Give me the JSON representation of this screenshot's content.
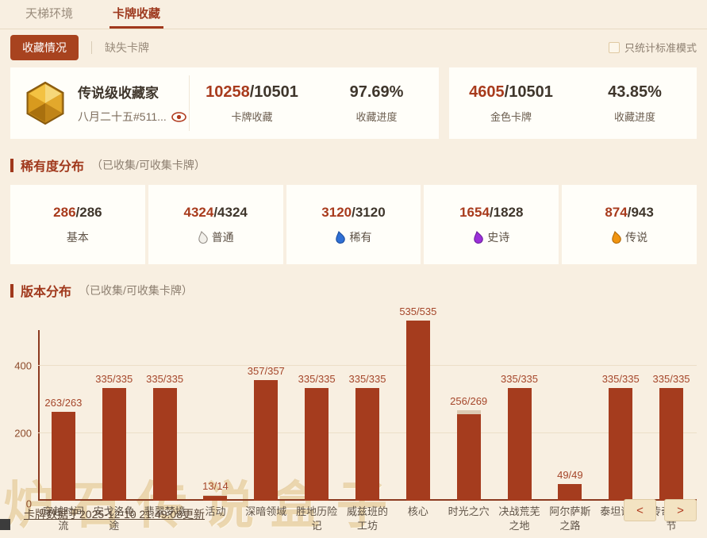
{
  "tabs": [
    {
      "label": "天梯环境",
      "active": false
    },
    {
      "label": "卡牌收藏",
      "active": true
    }
  ],
  "subnav": {
    "buttons": [
      {
        "label": "收藏情况",
        "active": true
      },
      {
        "label": "缺失卡牌",
        "active": false
      }
    ],
    "checkbox_label": "只统计标准模式",
    "checkbox_checked": false
  },
  "profile": {
    "title": "传说级收藏家",
    "battletag": "八月二十五#511...",
    "icon": "gold-hexagon-gem"
  },
  "summary": {
    "stats": [
      {
        "red": "10258",
        "dark": "/10501",
        "label": "卡牌收藏"
      },
      {
        "red": "",
        "dark": "97.69%",
        "label": "收藏进度"
      },
      {
        "red": "4605",
        "dark": "/10501",
        "label": "金色卡牌"
      },
      {
        "red": "",
        "dark": "43.85%",
        "label": "收藏进度"
      }
    ]
  },
  "rarity_section": {
    "title": "稀有度分布",
    "subtitle": "（已收集/可收集卡牌）",
    "items": [
      {
        "collected": "286",
        "total": "286",
        "label": "基本",
        "gem": null,
        "gem_fill": null,
        "gem_stroke": null
      },
      {
        "collected": "4324",
        "total": "4324",
        "label": "普通",
        "gem": "common-gem-icon",
        "gem_fill": "#f2f0ea",
        "gem_stroke": "#97918a"
      },
      {
        "collected": "3120",
        "total": "3120",
        "label": "稀有",
        "gem": "rare-gem-icon",
        "gem_fill": "#2f6fd4",
        "gem_stroke": "#1d4fa0"
      },
      {
        "collected": "1654",
        "total": "1828",
        "label": "史诗",
        "gem": "epic-gem-icon",
        "gem_fill": "#9b30d9",
        "gem_stroke": "#6d1f9e"
      },
      {
        "collected": "874",
        "total": "943",
        "label": "传说",
        "gem": "legendary-gem-icon",
        "gem_fill": "#f09410",
        "gem_stroke": "#b36a08"
      }
    ]
  },
  "version_section": {
    "title": "版本分布",
    "subtitle": "（已收集/可收集卡牌）"
  },
  "chart_data": {
    "type": "bar",
    "categories": [
      "穿越时间流",
      "安戈洛龟途",
      "翡翠梦境",
      "活动",
      "深暗领域",
      "胜地历险记",
      "威兹班的工坊",
      "核心",
      "时光之穴",
      "决战荒芜之地",
      "阿尔萨斯之路",
      "泰坦诸神",
      "传奇音乐节"
    ],
    "series": [
      {
        "name": "已收集",
        "values": [
          263,
          335,
          335,
          13,
          357,
          335,
          335,
          535,
          256,
          335,
          49,
          335,
          335
        ]
      },
      {
        "name": "可收集",
        "values": [
          263,
          335,
          335,
          14,
          357,
          335,
          335,
          535,
          269,
          335,
          49,
          335,
          335
        ]
      }
    ],
    "labels": [
      "263/263",
      "335/335",
      "335/335",
      "13/14",
      "357/357",
      "335/335",
      "335/335",
      "535/535",
      "256/269",
      "335/335",
      "49/49",
      "335/335",
      "335/335"
    ],
    "title": "版本分布（已收集/可收集卡牌）",
    "xlabel": "",
    "ylabel": "",
    "yticks": [
      0,
      200,
      400
    ],
    "ylim": [
      0,
      540
    ],
    "grid": true,
    "legend": false,
    "bar_color": "#a53c1e",
    "missing_color": "#dccab2"
  },
  "footer": {
    "update_text": "卡牌数据于2025-12-10 21:49:08更新",
    "watermark": "炉石传说盒子",
    "pagination": {
      "prev": "<",
      "next": ">"
    }
  }
}
